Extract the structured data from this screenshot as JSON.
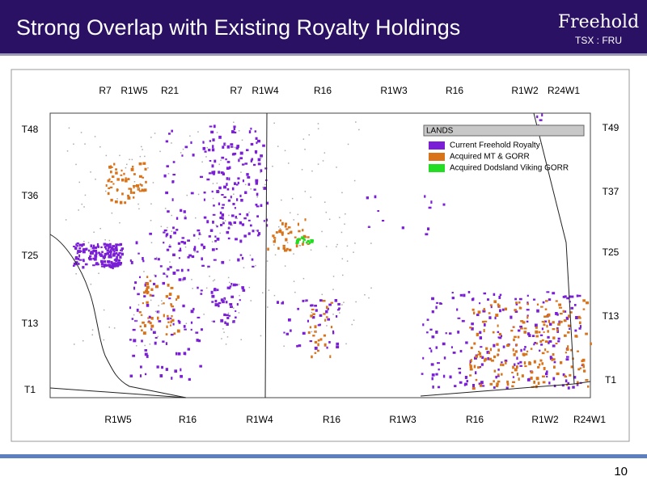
{
  "header": {
    "title": "Strong Overlap with Existing Royalty Holdings",
    "logo": "Freehold",
    "ticker": "TSX : FRU"
  },
  "map": {
    "top_labels": [
      "R7",
      "R1W5",
      "R21",
      "R7",
      "R1W4",
      "R16",
      "R1W3",
      "R16",
      "R1W2",
      "R24W1"
    ],
    "bottom_labels": [
      "R1W5",
      "R16",
      "R1W4",
      "R16",
      "R1W3",
      "R16",
      "R1W2",
      "R24W1"
    ],
    "left_labels": [
      "T48",
      "T36",
      "T25",
      "T13",
      "T1"
    ],
    "right_labels": [
      "T49",
      "T37",
      "T25",
      "T13",
      "T1"
    ]
  },
  "legend": {
    "title": "LANDS",
    "items": [
      {
        "label": "Current Freehold Royalty",
        "color": "#7a1fd6"
      },
      {
        "label": "Acquired MT & GORR",
        "color": "#d9731a"
      },
      {
        "label": "Acquired Dodsland Viking GORR",
        "color": "#22dd22"
      }
    ]
  },
  "footer": {
    "page_number": "10"
  }
}
